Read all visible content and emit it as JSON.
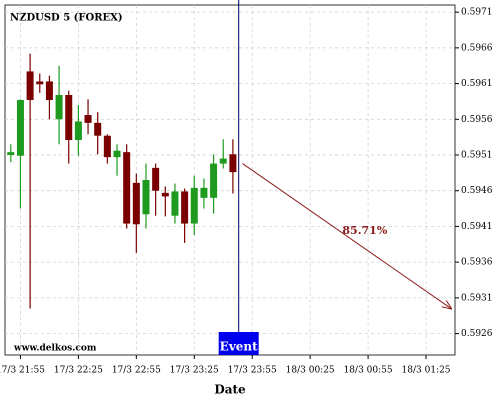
{
  "chart_data": {
    "type": "candlestick",
    "title": "NZDUSD 5 (FOREX)",
    "watermark": "www.delkos.com",
    "xlabel": "Date",
    "x": [
      "17/3 21:50",
      "17/3 21:55",
      "17/3 22:00",
      "17/3 22:05",
      "17/3 22:10",
      "17/3 22:15",
      "17/3 22:20",
      "17/3 22:25",
      "17/3 22:30",
      "17/3 22:35",
      "17/3 22:40",
      "17/3 22:45",
      "17/3 22:50",
      "17/3 22:55",
      "17/3 23:00",
      "17/3 23:05",
      "17/3 23:10",
      "17/3 23:15",
      "17/3 23:20",
      "17/3 23:25",
      "17/3 23:30",
      "17/3 23:35",
      "17/3 23:40",
      "17/3 23:45"
    ],
    "open": [
      0.5951,
      0.59509,
      0.59627,
      0.59613,
      0.59613,
      0.5956,
      0.59594,
      0.59531,
      0.59566,
      0.59555,
      0.59537,
      0.59507,
      0.59514,
      0.59471,
      0.59427,
      0.59492,
      0.59457,
      0.59425,
      0.59459,
      0.59414,
      0.5945,
      0.5945,
      0.59498,
      0.59511
    ],
    "high": [
      0.59525,
      0.59588,
      0.59652,
      0.59624,
      0.59621,
      0.59635,
      0.596,
      0.5958,
      0.59588,
      0.5957,
      0.59539,
      0.59525,
      0.59525,
      0.59484,
      0.59498,
      0.59498,
      0.59466,
      0.5947,
      0.59463,
      0.59481,
      0.59477,
      0.59511,
      0.59532,
      0.59532
    ],
    "low": [
      0.595,
      0.59435,
      0.59295,
      0.59597,
      0.5956,
      0.59525,
      0.59498,
      0.59509,
      0.59539,
      0.59511,
      0.59498,
      0.59481,
      0.59407,
      0.59373,
      0.59407,
      0.59425,
      0.59424,
      0.59414,
      0.59387,
      0.59398,
      0.59435,
      0.59428,
      0.59491,
      0.59456
    ],
    "close": [
      0.59514,
      0.59587,
      0.59587,
      0.59609,
      0.59587,
      0.59594,
      0.59531,
      0.59557,
      0.59555,
      0.59537,
      0.59507,
      0.59516,
      0.59414,
      0.59413,
      0.59475,
      0.5946,
      0.59452,
      0.59459,
      0.59414,
      0.59464,
      0.59464,
      0.59498,
      0.59505,
      0.59486
    ],
    "up_color": "#1e9b1e",
    "down_color": "#7a0000",
    "xlim": [
      "17/3 21:47",
      "18/3 01:40"
    ],
    "xticks": [
      "17/3 21:55",
      "17/3 22:25",
      "17/3 22:55",
      "17/3 23:25",
      "17/3 23:55",
      "18/3 00:25",
      "18/3 00:55",
      "18/3 01:25"
    ],
    "ylim": [
      0.5923,
      0.5972
    ],
    "yticks": [
      0.5926,
      0.5931,
      0.5936,
      0.5941,
      0.5946,
      0.5951,
      0.5956,
      0.5961,
      0.5966,
      0.5971
    ],
    "grid": true,
    "event": {
      "label": "Event",
      "x": "17/3 23:48",
      "color": "#0000ee"
    },
    "forecast": {
      "label": "85.71%",
      "color": "#8b1a1a",
      "from": {
        "x": "17/3 23:50",
        "y": 0.59498
      },
      "to": {
        "x": "18/3 01:38",
        "y": 0.59295
      }
    }
  }
}
